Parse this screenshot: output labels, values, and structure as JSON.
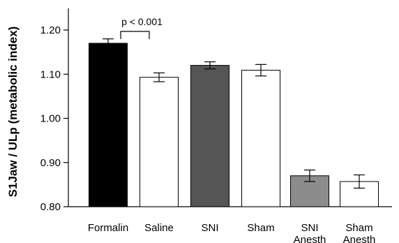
{
  "chart_data": {
    "type": "bar",
    "ylabel": "S1Jaw / ULp (metabolic index)",
    "ylim": [
      0.8,
      1.25
    ],
    "yticks": [
      "0.80",
      "0.90",
      "1.00",
      "1.10",
      "1.20"
    ],
    "tick_values": [
      0.8,
      0.9,
      1.0,
      1.1,
      1.2
    ],
    "grid": false,
    "bars": [
      {
        "label": [
          "Formalin"
        ],
        "value": 1.17,
        "error": 0.01,
        "fill": "#000000"
      },
      {
        "label": [
          "Saline"
        ],
        "value": 1.093,
        "error": 0.01,
        "fill": "#ffffff"
      },
      {
        "label": [
          "SNI"
        ],
        "value": 1.12,
        "error": 0.008,
        "fill": "#555555"
      },
      {
        "label": [
          "Sham"
        ],
        "value": 1.109,
        "error": 0.013,
        "fill": "#ffffff"
      },
      {
        "label": [
          "SNI",
          "Anesth"
        ],
        "value": 0.87,
        "error": 0.013,
        "fill": "#8c8c8c"
      },
      {
        "label": [
          "Sham",
          "Anesth"
        ],
        "value": 0.857,
        "error": 0.015,
        "fill": "#ffffff"
      }
    ],
    "annotation": {
      "text": "p < 0.001",
      "from": 0,
      "to": 1
    }
  }
}
